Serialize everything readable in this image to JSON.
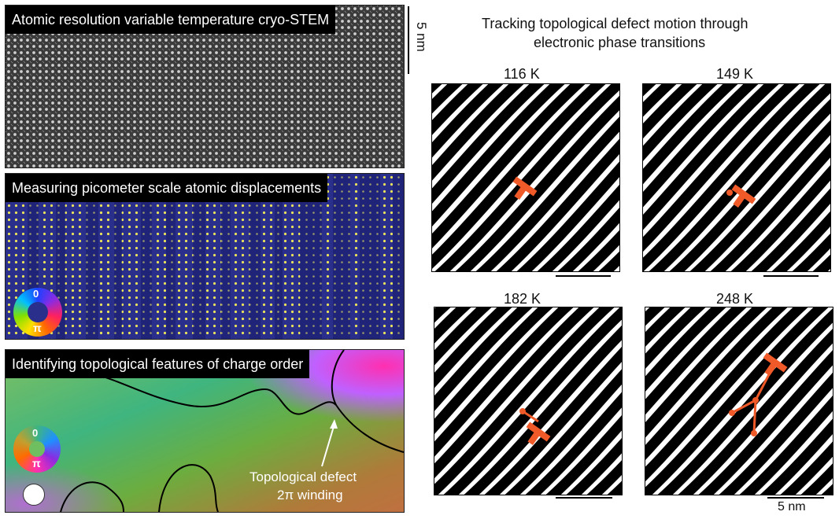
{
  "panels": {
    "stem": {
      "label": "Atomic resolution variable temperature cryo-STEM",
      "scale_label": "5 nm"
    },
    "displacement": {
      "label": "Measuring picometer scale atomic displacements",
      "wheel_top": "0",
      "wheel_bottom": "π"
    },
    "topology": {
      "label": "Identifying topological features of charge order",
      "wheel_top": "0",
      "wheel_bottom": "π",
      "defect_annotation_line1": "Topological defect",
      "defect_annotation_line2": "2π winding"
    }
  },
  "tracking": {
    "title_line1": "Tracking topological defect motion through",
    "title_line2": "electronic phase transitions",
    "frames": [
      {
        "temperature": "116 K"
      },
      {
        "temperature": "149 K"
      },
      {
        "temperature": "182 K"
      },
      {
        "temperature": "248 K"
      }
    ],
    "scale_label": "5 nm"
  },
  "colors": {
    "defect_marker": "#f05a28",
    "label_background": "#000000",
    "label_text": "#ffffff",
    "lattice_bg": "#3a3a3a",
    "displacement_blue": "#2a2f8f",
    "displacement_yellow": "#e8e35a"
  }
}
